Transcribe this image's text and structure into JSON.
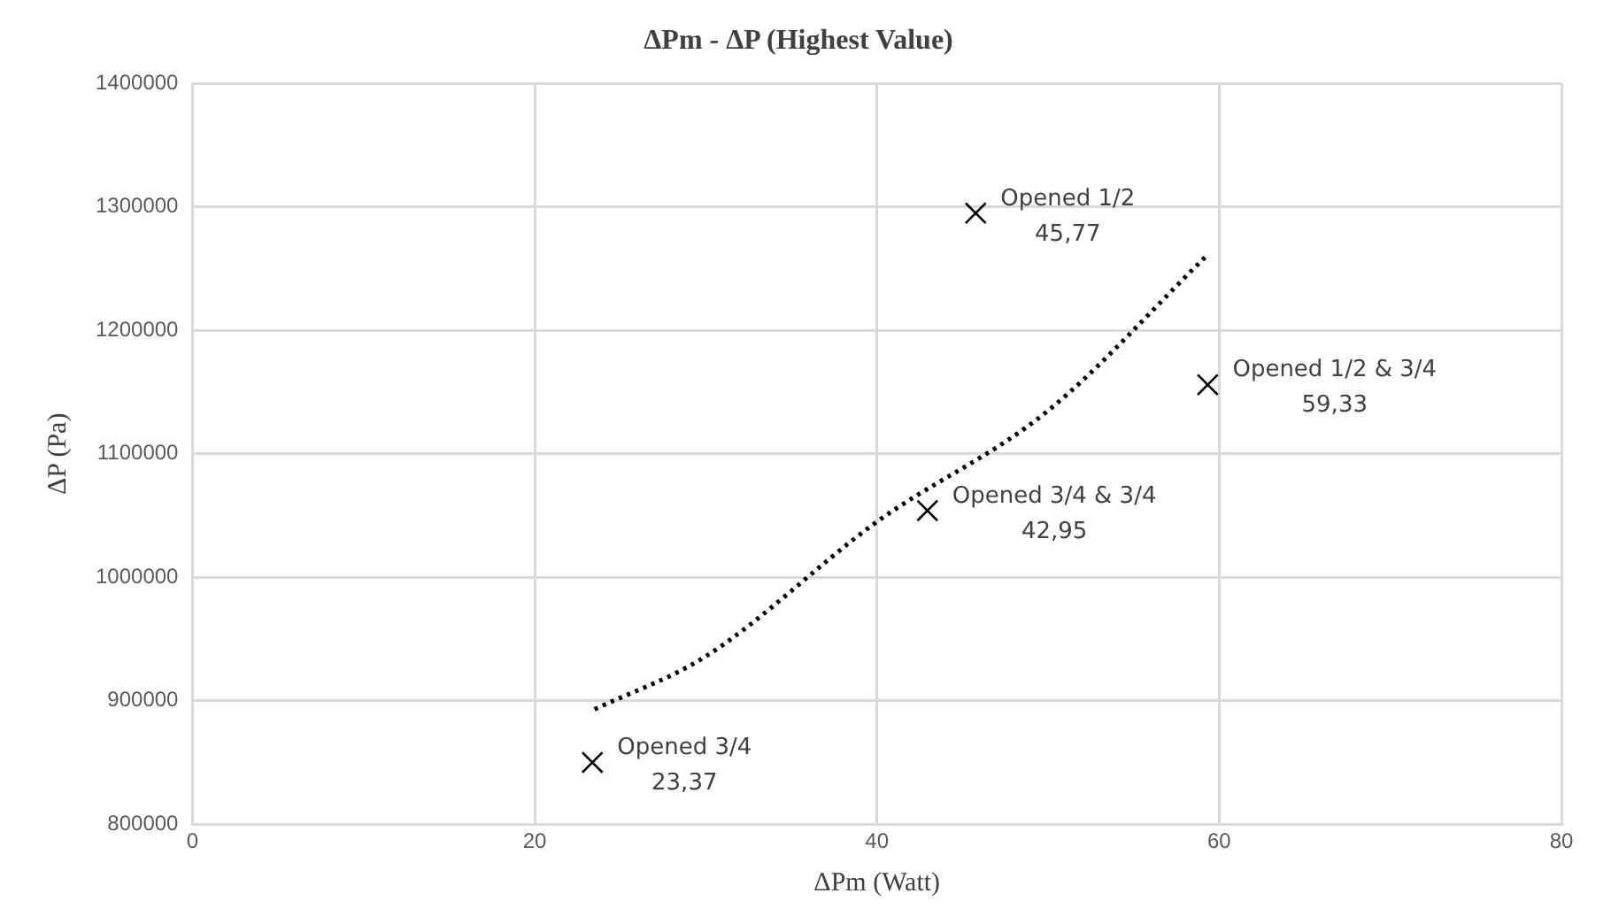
{
  "chart_data": {
    "type": "scatter",
    "title": "ΔPm - ΔP (Highest Value)",
    "xlabel": "ΔPm (Watt)",
    "ylabel": "ΔP (Pa)",
    "series": [
      {
        "color": "#000000",
        "marker": "cross",
        "x": [
          23.37,
          45.77,
          42.95,
          59.33
        ],
        "values": [
          850000,
          1295000,
          1054000,
          1156000
        ]
      },
      {
        "type": "line",
        "color": "#000000",
        "marker": "none",
        "line_style": "dotted",
        "x": [
          23.5,
          30,
          40,
          50,
          59.3
        ],
        "values": [
          893000,
          936000,
          1045000,
          1135000,
          1261000
        ]
      }
    ],
    "annotations": [
      {
        "text": "Opened 3/4\n23,37",
        "x": 23.37,
        "y": 850000
      },
      {
        "text": "Opened 1/2\n45,77",
        "x": 45.77,
        "y": 1295000
      },
      {
        "text": "Opened 3/4 & 3/4\n42,95",
        "x": 42.95,
        "y": 1054000
      },
      {
        "text": "Opened 1/2 & 3/4\n59,33",
        "x": 59.33,
        "y": 1156000
      }
    ],
    "xlim": [
      0,
      80
    ],
    "xticks": [
      0,
      20,
      40,
      60,
      80
    ],
    "ylim": [
      800000,
      1400000
    ],
    "yticks": [
      800000,
      900000,
      1000000,
      1100000,
      1200000,
      1300000,
      1400000
    ],
    "grid": true,
    "legend": false
  }
}
